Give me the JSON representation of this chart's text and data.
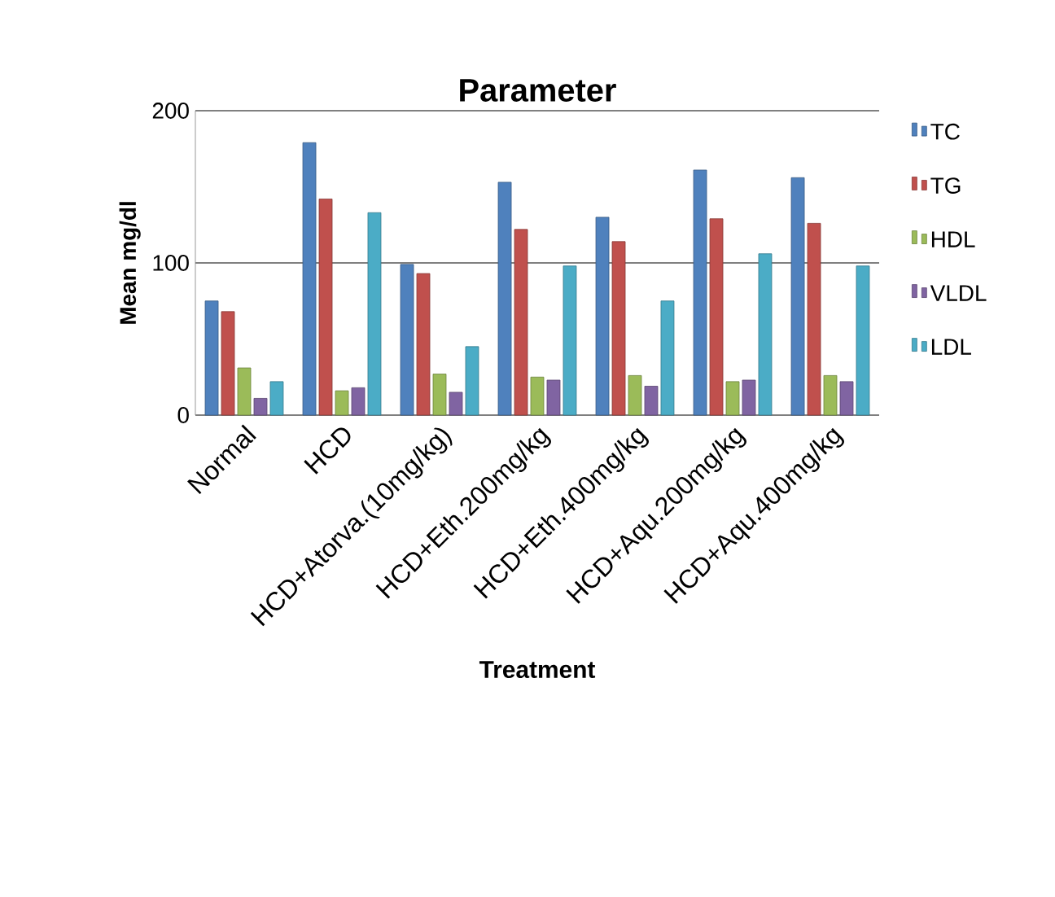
{
  "chart_data": {
    "type": "bar",
    "title": "Parameter",
    "xlabel": "Treatment",
    "ylabel": "Mean mg/dl",
    "categories": [
      "Normal",
      "HCD",
      "HCD+Atorva.(10mg/kg)",
      "HCD+Eth.200mg/kg",
      "HCD+Eth.400mg/kg",
      "HCD+Aqu.200mg/kg",
      "HCD+Aqu.400mg/kg"
    ],
    "series": [
      {
        "name": "TC",
        "color": "#4f81bd",
        "values": [
          75,
          179,
          99,
          153,
          130,
          161,
          156
        ]
      },
      {
        "name": "TG",
        "color": "#c0504d",
        "values": [
          68,
          142,
          93,
          122,
          114,
          129,
          126
        ]
      },
      {
        "name": "HDL",
        "color": "#9bbb59",
        "values": [
          31,
          16,
          27,
          25,
          26,
          22,
          26
        ]
      },
      {
        "name": "VLDL",
        "color": "#8064a2",
        "values": [
          11,
          18,
          15,
          23,
          19,
          23,
          22
        ]
      },
      {
        "name": "LDL",
        "color": "#4bacc6",
        "values": [
          22,
          133,
          45,
          98,
          75,
          106,
          98
        ]
      }
    ],
    "ylim": [
      0,
      200
    ],
    "yticks": [
      0,
      100,
      200
    ],
    "grid": "y",
    "legend": "right"
  }
}
